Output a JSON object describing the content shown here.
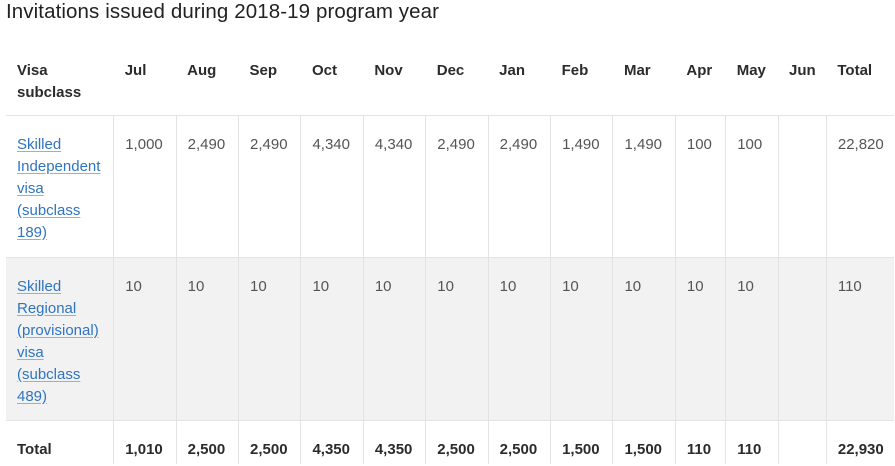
{
  "title": "Invitations issued during 2018-19 program year",
  "table": {
    "headers": [
      "Visa subclass",
      "Jul",
      "Aug",
      "Sep",
      "Oct",
      "Nov",
      "Dec",
      "Jan",
      "Feb",
      "Mar",
      "Apr",
      "May",
      "Jun",
      "Total"
    ],
    "rows": [
      {
        "visa": "Skilled Independent visa (subclass 189)",
        "values": [
          "1,000",
          "2,490",
          "2,490",
          "4,340",
          "4,340",
          "2,490",
          "2,490",
          "1,490",
          "1,490",
          "100",
          "100",
          ""
        ],
        "total": "22,820"
      },
      {
        "visa": "Skilled Regional (provisional) visa (subclass 489)",
        "values": [
          "10",
          "10",
          "10",
          "10",
          "10",
          "10",
          "10",
          "10",
          "10",
          "10",
          "10",
          ""
        ],
        "total": "110"
      }
    ],
    "total_row": {
      "label": "Total",
      "values": [
        "1,010",
        "2,500",
        "2,500",
        "4,350",
        "4,350",
        "2,500",
        "2,500",
        "1,500",
        "1,500",
        "110",
        "110",
        ""
      ],
      "total": "22,930"
    }
  },
  "colors": {
    "link": "#2f74c0",
    "stripe": "#f2f2f2",
    "border": "#e3e3e3"
  }
}
